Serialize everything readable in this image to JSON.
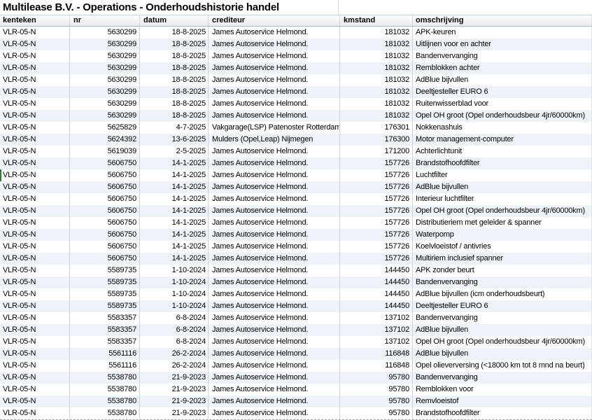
{
  "title": "Multilease B.V. - Operations - Onderhoudshistorie handel",
  "colors": {
    "stripe_row": "#eef3fa",
    "focus_indicator_green": "#2e7d32",
    "header_top_border": "#bcd4ea",
    "header_bottom_border": "#9fb9d6"
  },
  "table": {
    "columns": [
      {
        "key": "kenteken",
        "label": "kenteken",
        "align": "left"
      },
      {
        "key": "nr",
        "label": "nr",
        "align": "right"
      },
      {
        "key": "datum",
        "label": "datum",
        "align": "right"
      },
      {
        "key": "crediteur",
        "label": "crediteur",
        "align": "left"
      },
      {
        "key": "kmstand",
        "label": "kmstand",
        "align": "right"
      },
      {
        "key": "omschrijving",
        "label": "omschrijving",
        "align": "left"
      }
    ],
    "focused_row_index": 12,
    "rows": [
      {
        "kenteken": "VLR-05-N",
        "nr": "5630299",
        "datum": "18-8-2025",
        "crediteur": "James Autoservice Helmond.",
        "kmstand": "181032",
        "omschrijving": "APK-keuren"
      },
      {
        "kenteken": "VLR-05-N",
        "nr": "5630299",
        "datum": "18-8-2025",
        "crediteur": "James Autoservice Helmond.",
        "kmstand": "181032",
        "omschrijving": "Uitlijnen voor en achter"
      },
      {
        "kenteken": "VLR-05-N",
        "nr": "5630299",
        "datum": "18-8-2025",
        "crediteur": "James Autoservice Helmond.",
        "kmstand": "181032",
        "omschrijving": "Bandenvervanging"
      },
      {
        "kenteken": "VLR-05-N",
        "nr": "5630299",
        "datum": "18-8-2025",
        "crediteur": "James Autoservice Helmond.",
        "kmstand": "181032",
        "omschrijving": "Remblokken achter"
      },
      {
        "kenteken": "VLR-05-N",
        "nr": "5630299",
        "datum": "18-8-2025",
        "crediteur": "James Autoservice Helmond.",
        "kmstand": "181032",
        "omschrijving": "AdBlue bijvullen"
      },
      {
        "kenteken": "VLR-05-N",
        "nr": "5630299",
        "datum": "18-8-2025",
        "crediteur": "James Autoservice Helmond.",
        "kmstand": "181032",
        "omschrijving": "Deeltjesteller EURO 6"
      },
      {
        "kenteken": "VLR-05-N",
        "nr": "5630299",
        "datum": "18-8-2025",
        "crediteur": "James Autoservice Helmond.",
        "kmstand": "181032",
        "omschrijving": "Ruitenwisserblad voor"
      },
      {
        "kenteken": "VLR-05-N",
        "nr": "5630299",
        "datum": "18-8-2025",
        "crediteur": "James Autoservice Helmond.",
        "kmstand": "181032",
        "omschrijving": "Opel OH groot (Opel onderhoudsbeur 4jr/60000km)"
      },
      {
        "kenteken": "VLR-05-N",
        "nr": "5625829",
        "datum": "4-7-2025",
        "crediteur": "Vakgarage(LSP) Patenoster Rotterdam",
        "kmstand": "176301",
        "omschrijving": "Nokkenashuis"
      },
      {
        "kenteken": "VLR-05-N",
        "nr": "5624392",
        "datum": "13-6-2025",
        "crediteur": "Mulders (Opel,Leap) Nijmegen",
        "kmstand": "176300",
        "omschrijving": "Motor management-computer"
      },
      {
        "kenteken": "VLR-05-N",
        "nr": "5619039",
        "datum": "2-5-2025",
        "crediteur": "James Autoservice Helmond.",
        "kmstand": "171200",
        "omschrijving": "Achterlichtunit"
      },
      {
        "kenteken": "VLR-05-N",
        "nr": "5606750",
        "datum": "14-1-2025",
        "crediteur": "James Autoservice Helmond.",
        "kmstand": "157726",
        "omschrijving": "Brandstofhoofdfilter"
      },
      {
        "kenteken": "VLR-05-N",
        "nr": "5606750",
        "datum": "14-1-2025",
        "crediteur": "James Autoservice Helmond.",
        "kmstand": "157726",
        "omschrijving": "Luchtfilter"
      },
      {
        "kenteken": "VLR-05-N",
        "nr": "5606750",
        "datum": "14-1-2025",
        "crediteur": "James Autoservice Helmond.",
        "kmstand": "157726",
        "omschrijving": "AdBlue bijvullen"
      },
      {
        "kenteken": "VLR-05-N",
        "nr": "5606750",
        "datum": "14-1-2025",
        "crediteur": "James Autoservice Helmond.",
        "kmstand": "157726",
        "omschrijving": "Interieur luchtfilter"
      },
      {
        "kenteken": "VLR-05-N",
        "nr": "5606750",
        "datum": "14-1-2025",
        "crediteur": "James Autoservice Helmond.",
        "kmstand": "157726",
        "omschrijving": "Opel OH groot (Opel onderhoudsbeur 4jr/60000km)"
      },
      {
        "kenteken": "VLR-05-N",
        "nr": "5606750",
        "datum": "14-1-2025",
        "crediteur": "James Autoservice Helmond.",
        "kmstand": "157726",
        "omschrijving": "Distributieriem met geleider & spanner"
      },
      {
        "kenteken": "VLR-05-N",
        "nr": "5606750",
        "datum": "14-1-2025",
        "crediteur": "James Autoservice Helmond.",
        "kmstand": "157726",
        "omschrijving": "Waterpomp"
      },
      {
        "kenteken": "VLR-05-N",
        "nr": "5606750",
        "datum": "14-1-2025",
        "crediteur": "James Autoservice Helmond.",
        "kmstand": "157726",
        "omschrijving": "Koelvloeistof / antivries"
      },
      {
        "kenteken": "VLR-05-N",
        "nr": "5606750",
        "datum": "14-1-2025",
        "crediteur": "James Autoservice Helmond.",
        "kmstand": "157726",
        "omschrijving": "Multiriem inclusief spanner"
      },
      {
        "kenteken": "VLR-05-N",
        "nr": "5589735",
        "datum": "1-10-2024",
        "crediteur": "James Autoservice Helmond.",
        "kmstand": "144450",
        "omschrijving": "APK zonder beurt"
      },
      {
        "kenteken": "VLR-05-N",
        "nr": "5589735",
        "datum": "1-10-2024",
        "crediteur": "James Autoservice Helmond.",
        "kmstand": "144450",
        "omschrijving": "Bandenvervanging"
      },
      {
        "kenteken": "VLR-05-N",
        "nr": "5589735",
        "datum": "1-10-2024",
        "crediteur": "James Autoservice Helmond.",
        "kmstand": "144450",
        "omschrijving": "AdBlue bijvullen (icm onderhoudsbeurt)"
      },
      {
        "kenteken": "VLR-05-N",
        "nr": "5589735",
        "datum": "1-10-2024",
        "crediteur": "James Autoservice Helmond.",
        "kmstand": "144450",
        "omschrijving": "Deeltjesteller EURO 6"
      },
      {
        "kenteken": "VLR-05-N",
        "nr": "5583357",
        "datum": "6-8-2024",
        "crediteur": "James Autoservice Helmond.",
        "kmstand": "137102",
        "omschrijving": "Bandenvervanging"
      },
      {
        "kenteken": "VLR-05-N",
        "nr": "5583357",
        "datum": "6-8-2024",
        "crediteur": "James Autoservice Helmond.",
        "kmstand": "137102",
        "omschrijving": "AdBlue bijvullen"
      },
      {
        "kenteken": "VLR-05-N",
        "nr": "5583357",
        "datum": "6-8-2024",
        "crediteur": "James Autoservice Helmond.",
        "kmstand": "137102",
        "omschrijving": "Opel OH groot (Opel onderhoudsbeur 4jr/60000km)"
      },
      {
        "kenteken": "VLR-05-N",
        "nr": "5561116",
        "datum": "26-2-2024",
        "crediteur": "James Autoservice Helmond.",
        "kmstand": "116848",
        "omschrijving": "AdBlue bijvullen"
      },
      {
        "kenteken": "VLR-05-N",
        "nr": "5561116",
        "datum": "26-2-2024",
        "crediteur": "James Autoservice Helmond.",
        "kmstand": "116848",
        "omschrijving": "Opel olieverversing (<18000 km tot 8 mnd na beurt)"
      },
      {
        "kenteken": "VLR-05-N",
        "nr": "5538780",
        "datum": "21-9-2023",
        "crediteur": "James Autoservice Helmond.",
        "kmstand": "95780",
        "omschrijving": "Bandenvervanging"
      },
      {
        "kenteken": "VLR-05-N",
        "nr": "5538780",
        "datum": "21-9-2023",
        "crediteur": "James Autoservice Helmond.",
        "kmstand": "95780",
        "omschrijving": "Remblokken voor"
      },
      {
        "kenteken": "VLR-05-N",
        "nr": "5538780",
        "datum": "21-9-2023",
        "crediteur": "James Autoservice Helmond.",
        "kmstand": "95780",
        "omschrijving": "Remvloeistof"
      },
      {
        "kenteken": "VLR-05-N",
        "nr": "5538780",
        "datum": "21-9-2023",
        "crediteur": "James Autoservice Helmond.",
        "kmstand": "95780",
        "omschrijving": "Brandstofhoofdfilter"
      }
    ]
  }
}
